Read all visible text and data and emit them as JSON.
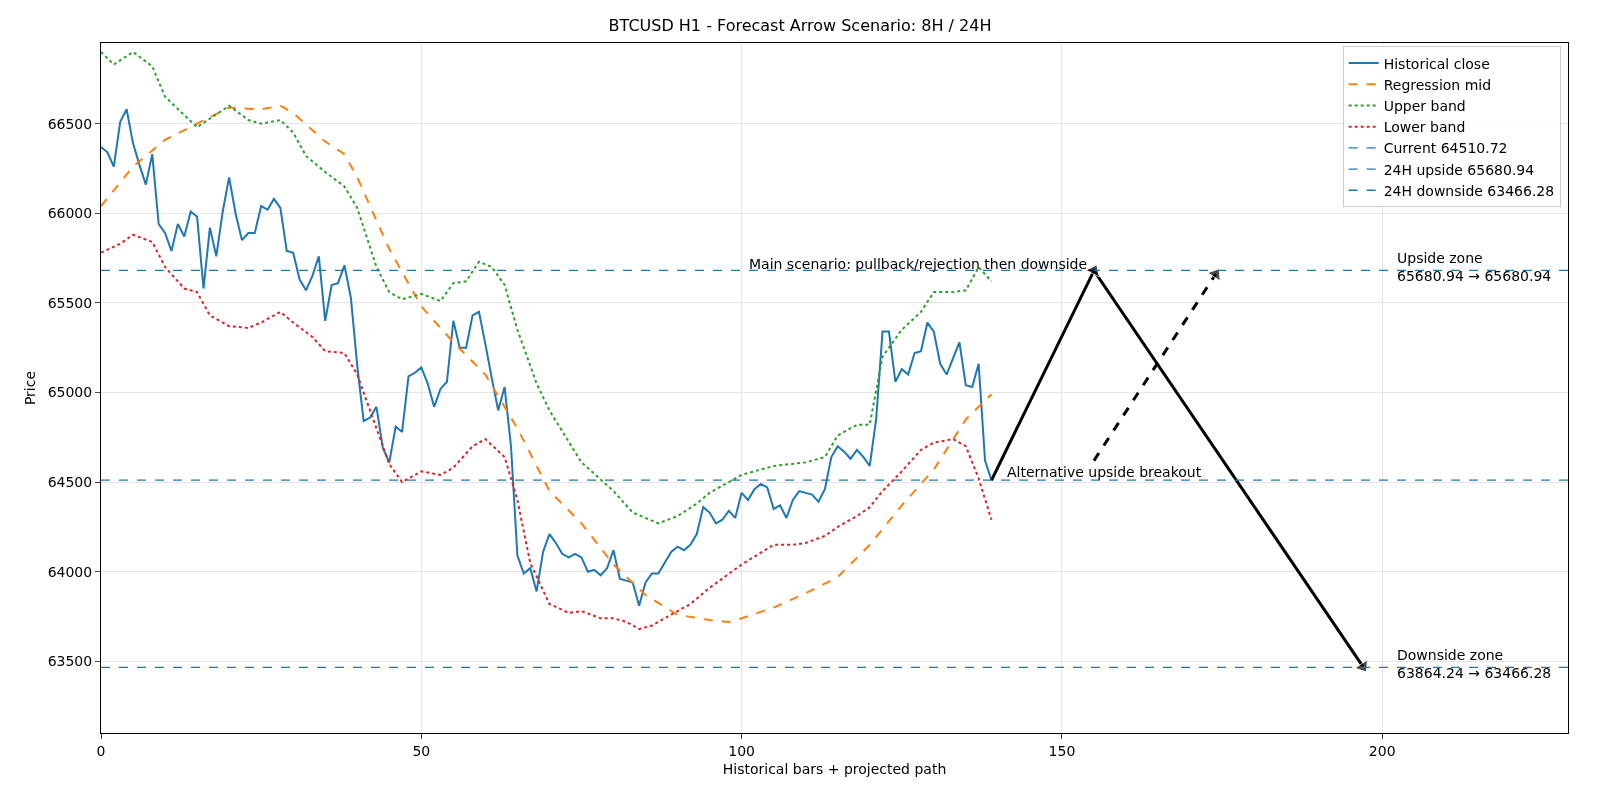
{
  "chart_data": {
    "type": "line",
    "title": "BTCUSD H1 - Forecast Arrow Scenario: 8H / 24H",
    "xlabel": "Historical bars + projected path",
    "ylabel": "Price",
    "xlim": [
      0,
      229
    ],
    "xticks": [
      0,
      50,
      100,
      150,
      200
    ],
    "ylim": [
      63100,
      66950
    ],
    "yticks": [
      63500,
      64000,
      64500,
      65000,
      65500,
      66000,
      66500
    ],
    "grid": true,
    "legend": "top right",
    "series": [
      {
        "name": "Historical close",
        "color": "#1f77b4",
        "line_style": "solid",
        "x": [
          0,
          1,
          2,
          3,
          4,
          5,
          6,
          7,
          8,
          9,
          10,
          11,
          12,
          13,
          14,
          15,
          16,
          17,
          18,
          19,
          20,
          21,
          22,
          23,
          24,
          25,
          26,
          27,
          28,
          29,
          30,
          31,
          32,
          33,
          34,
          35,
          36,
          37,
          38,
          39,
          40,
          41,
          42,
          43,
          44,
          45,
          46,
          47,
          48,
          49,
          50,
          51,
          52,
          53,
          54,
          55,
          56,
          57,
          58,
          59,
          60,
          61,
          62,
          63,
          64,
          65,
          66,
          67,
          68,
          69,
          70,
          71,
          72,
          73,
          74,
          75,
          76,
          77,
          78,
          79,
          80,
          81,
          82,
          83,
          84,
          85,
          86,
          87,
          88,
          89,
          90,
          91,
          92,
          93,
          94,
          95,
          96,
          97,
          98,
          99,
          100,
          101,
          102,
          103,
          104,
          105,
          106,
          107,
          108,
          109,
          110,
          111,
          112,
          113,
          114,
          115,
          116,
          117,
          118,
          119,
          120,
          121,
          122,
          123,
          124,
          125,
          126,
          127,
          128,
          129,
          130,
          131,
          132,
          133,
          134,
          135,
          136,
          137,
          138,
          139
        ],
        "values": [
          66370,
          66340,
          66260,
          66510,
          66580,
          66390,
          66270,
          66160,
          66330,
          65940,
          65890,
          65790,
          65940,
          65870,
          66010,
          65980,
          65580,
          65920,
          65760,
          66010,
          66200,
          66000,
          65850,
          65890,
          65890,
          66040,
          66020,
          66080,
          66030,
          65790,
          65780,
          65630,
          65570,
          65650,
          65760,
          65400,
          65600,
          65610,
          65710,
          65530,
          65150,
          64840,
          64860,
          64920,
          64690,
          64610,
          64810,
          64780,
          65090,
          65110,
          65140,
          65050,
          64920,
          65020,
          65060,
          65400,
          65250,
          65250,
          65430,
          65450,
          65270,
          65080,
          64900,
          65030,
          64700,
          64090,
          63990,
          64020,
          63890,
          64110,
          64210,
          64160,
          64100,
          64080,
          64100,
          64080,
          64000,
          64010,
          63980,
          64020,
          64120,
          63960,
          63950,
          63940,
          63810,
          63940,
          63990,
          63990,
          64050,
          64110,
          64140,
          64120,
          64150,
          64210,
          64360,
          64330,
          64270,
          64290,
          64340,
          64300,
          64440,
          64400,
          64460,
          64490,
          64470,
          64350,
          64370,
          64300,
          64400,
          64450,
          64440,
          64430,
          64390,
          64460,
          64640,
          64700,
          64670,
          64630,
          64680,
          64640,
          64590,
          64850,
          65340,
          65340,
          65060,
          65130,
          65100,
          65220,
          65230,
          65390,
          65340,
          65160,
          65100,
          65190,
          65280,
          65040,
          65030,
          65160,
          64620,
          64510
        ]
      },
      {
        "name": "Regression mid",
        "color": "#ff7f0e",
        "line_style": "dashed",
        "x": [
          0,
          5,
          10,
          15,
          20,
          25,
          28,
          30,
          35,
          38,
          40,
          45,
          50,
          55,
          60,
          65,
          70,
          75,
          80,
          85,
          90,
          95,
          98,
          100,
          105,
          110,
          115,
          120,
          125,
          130,
          135,
          139
        ],
        "values": [
          66040,
          66260,
          66410,
          66500,
          66590,
          66580,
          66600,
          66560,
          66400,
          66330,
          66200,
          65800,
          65480,
          65280,
          65100,
          64800,
          64450,
          64270,
          64040,
          63870,
          63760,
          63730,
          63720,
          63740,
          63800,
          63880,
          63970,
          64150,
          64370,
          64570,
          64850,
          64990
        ]
      },
      {
        "name": "Upper band",
        "color": "#2ca02c",
        "line_style": "dotted",
        "x": [
          0,
          2,
          5,
          8,
          10,
          15,
          20,
          23,
          25,
          28,
          30,
          32,
          35,
          38,
          40,
          43,
          45,
          47,
          50,
          53,
          55,
          57,
          59,
          61,
          63,
          65,
          68,
          70,
          75,
          80,
          83,
          87,
          90,
          93,
          95,
          100,
          105,
          110,
          113,
          115,
          118,
          120,
          122,
          125,
          128,
          130,
          133,
          135,
          137,
          139
        ],
        "values": [
          66900,
          66830,
          66900,
          66820,
          66650,
          66480,
          66600,
          66520,
          66500,
          66520,
          66450,
          66320,
          66230,
          66150,
          66030,
          65700,
          65560,
          65520,
          65550,
          65510,
          65610,
          65620,
          65730,
          65700,
          65600,
          65350,
          65050,
          64900,
          64610,
          64450,
          64330,
          64270,
          64310,
          64380,
          64440,
          64540,
          64590,
          64610,
          64640,
          64760,
          64820,
          64820,
          65200,
          65350,
          65450,
          65560,
          65560,
          65570,
          65700,
          65620
        ]
      },
      {
        "name": "Lower band",
        "color": "#d62728",
        "line_style": "dotted",
        "x": [
          0,
          3,
          5,
          8,
          10,
          13,
          15,
          17,
          20,
          23,
          25,
          28,
          30,
          33,
          35,
          38,
          40,
          43,
          45,
          47,
          50,
          53,
          55,
          58,
          60,
          63,
          65,
          67,
          70,
          73,
          75,
          78,
          80,
          82,
          84,
          86,
          89,
          92,
          95,
          100,
          105,
          108,
          110,
          113,
          115,
          118,
          120,
          122,
          125,
          128,
          130,
          133,
          135,
          137,
          139
        ],
        "values": [
          65780,
          65830,
          65880,
          65840,
          65700,
          65580,
          65560,
          65430,
          65370,
          65360,
          65390,
          65450,
          65390,
          65310,
          65230,
          65220,
          65100,
          64800,
          64600,
          64500,
          64560,
          64540,
          64580,
          64700,
          64740,
          64640,
          64400,
          64050,
          63820,
          63770,
          63780,
          63740,
          63740,
          63720,
          63680,
          63700,
          63760,
          63820,
          63910,
          64040,
          64150,
          64150,
          64160,
          64200,
          64250,
          64310,
          64360,
          64450,
          64560,
          64680,
          64720,
          64740,
          64700,
          64520,
          64290
        ]
      },
      {
        "type": "line",
        "color": "#000000",
        "line_style": "solid",
        "marker": "triangle",
        "x": [
          139,
          155,
          197
        ],
        "values": [
          64510,
          65680,
          63470
        ]
      },
      {
        "type": "line",
        "color": "#000000",
        "line_style": "dashed",
        "marker": "triangle",
        "x": [
          155,
          174
        ],
        "values": [
          64620,
          65660
        ]
      }
    ],
    "ref_lines": [
      {
        "axis": "y",
        "value": 64510.72,
        "label": "Current 64510.72",
        "color": "#1f77b4",
        "line_style": "dashed"
      },
      {
        "axis": "y",
        "value": 65680.94,
        "label": "24H upside 65680.94",
        "color": "#1f77b4",
        "line_style": "dashed"
      },
      {
        "axis": "y",
        "value": 63466.28,
        "label": "24H downside 63466.28",
        "color": "#1f77b4",
        "line_style": "dashed"
      }
    ],
    "annotations": [
      {
        "text": "Main scenario: pullback/rejection then downside",
        "x": 155,
        "y": 65680.94
      },
      {
        "text": "Alternative upside breakout",
        "x": 139,
        "y": 64510.72
      },
      {
        "text": "Upside zone\n65680.94 → 65680.94",
        "x": 202,
        "y": 65680.94
      },
      {
        "text": "Downside zone\n63864.24 → 63466.28",
        "x": 202,
        "y": 63466.28
      }
    ]
  }
}
